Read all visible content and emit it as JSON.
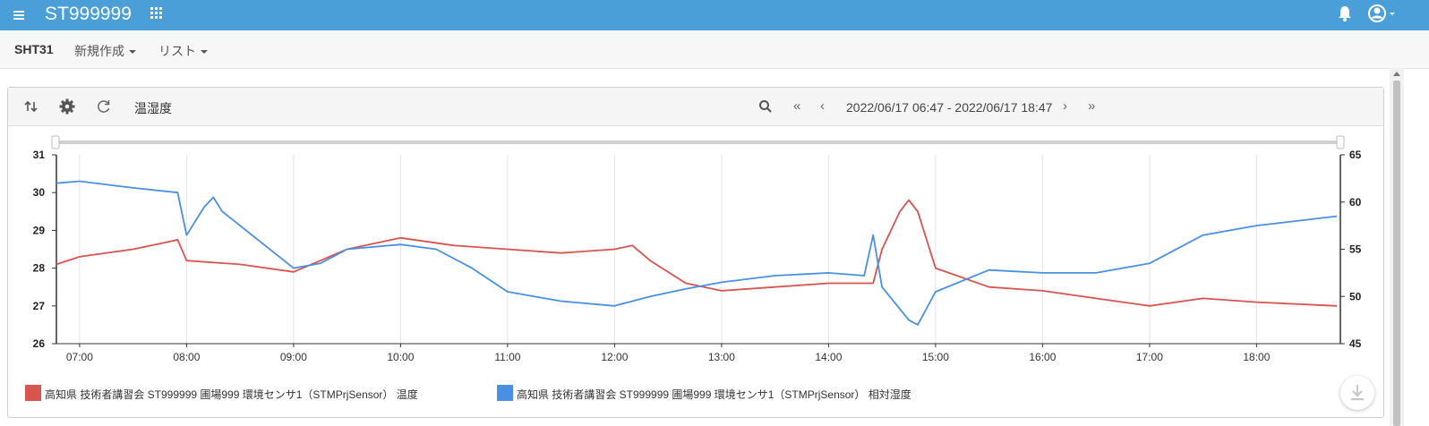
{
  "header": {
    "title": "ST999999",
    "icons": [
      "menu-icon",
      "apps-grid-icon",
      "bell-icon",
      "user-account-icon"
    ]
  },
  "subnav": {
    "brand": "SHT31",
    "menus": [
      {
        "label": "新規作成"
      },
      {
        "label": "リスト"
      }
    ]
  },
  "panel": {
    "title": "温湿度",
    "icons": [
      "swap-axes-icon",
      "gear-icon",
      "refresh-icon",
      "search-icon"
    ],
    "nav": {
      "first": "«",
      "prev": "‹",
      "next": "›",
      "last": "»"
    },
    "range_label": "2022/06/17 06:47 - 2022/06/17 18:47"
  },
  "colors": {
    "header": "#4a9fd8",
    "series_temp": "#d9534f",
    "series_humidity": "#4a90e2"
  },
  "chart_data": {
    "type": "line",
    "x_ticks": [
      "07:00",
      "08:00",
      "09:00",
      "10:00",
      "11:00",
      "12:00",
      "13:00",
      "14:00",
      "15:00",
      "16:00",
      "17:00",
      "18:00"
    ],
    "x_range": [
      "06:47",
      "18:47"
    ],
    "y_left": {
      "ticks": [
        26,
        27,
        28,
        29,
        30,
        31
      ],
      "range": [
        26,
        31
      ]
    },
    "y_right": {
      "ticks": [
        45,
        50,
        55,
        60,
        65
      ],
      "range": [
        45,
        65
      ]
    },
    "grid": "vertical",
    "legend_position": "bottom-left",
    "series": [
      {
        "name": "高知県 技術者講習会 ST999999 圃場999 環境センサ1（STMPrjSensor） 温度",
        "axis": "left",
        "x": [
          "06:47",
          "07:00",
          "07:30",
          "07:50",
          "07:55",
          "08:00",
          "08:30",
          "09:00",
          "09:15",
          "09:30",
          "10:00",
          "10:30",
          "11:00",
          "11:30",
          "12:00",
          "12:10",
          "12:20",
          "12:40",
          "13:00",
          "13:30",
          "14:00",
          "14:25",
          "14:30",
          "14:40",
          "14:45",
          "14:50",
          "15:00",
          "15:30",
          "16:00",
          "16:30",
          "17:00",
          "17:30",
          "18:00",
          "18:45"
        ],
        "values": [
          28.1,
          28.3,
          28.5,
          28.7,
          28.75,
          28.2,
          28.1,
          27.9,
          28.2,
          28.5,
          28.8,
          28.6,
          28.5,
          28.4,
          28.5,
          28.6,
          28.2,
          27.6,
          27.4,
          27.5,
          27.6,
          27.6,
          28.5,
          29.5,
          29.8,
          29.5,
          28.0,
          27.5,
          27.4,
          27.2,
          27.0,
          27.2,
          27.1,
          27.0
        ]
      },
      {
        "name": "高知県 技術者講習会 ST999999 圃場999 環境センサ1（STMPrjSensor） 相対湿度",
        "axis": "right",
        "x": [
          "06:47",
          "07:00",
          "07:30",
          "07:55",
          "08:00",
          "08:10",
          "08:15",
          "08:20",
          "08:30",
          "09:00",
          "09:15",
          "09:30",
          "10:00",
          "10:20",
          "10:40",
          "11:00",
          "11:30",
          "12:00",
          "12:20",
          "12:40",
          "13:00",
          "13:30",
          "14:00",
          "14:20",
          "14:25",
          "14:30",
          "14:45",
          "14:50",
          "15:00",
          "15:30",
          "16:00",
          "16:30",
          "17:00",
          "17:30",
          "18:00",
          "18:45"
        ],
        "values": [
          62.0,
          62.2,
          61.5,
          61.0,
          56.5,
          59.5,
          60.5,
          59.0,
          57.5,
          53.0,
          53.5,
          55.0,
          55.5,
          55.0,
          53.0,
          50.5,
          49.5,
          49.0,
          50.0,
          50.8,
          51.5,
          52.2,
          52.5,
          52.2,
          56.5,
          51.0,
          47.5,
          47.0,
          50.5,
          52.8,
          52.5,
          52.5,
          53.5,
          56.5,
          57.5,
          58.5
        ]
      }
    ]
  },
  "legend": [
    {
      "label": "高知県 技術者講習会 ST999999 圃場999 環境センサ1（STMPrjSensor） 温度"
    },
    {
      "label": "高知県 技術者講習会 ST999999 圃場999 環境センサ1（STMPrjSensor） 相対湿度"
    }
  ]
}
